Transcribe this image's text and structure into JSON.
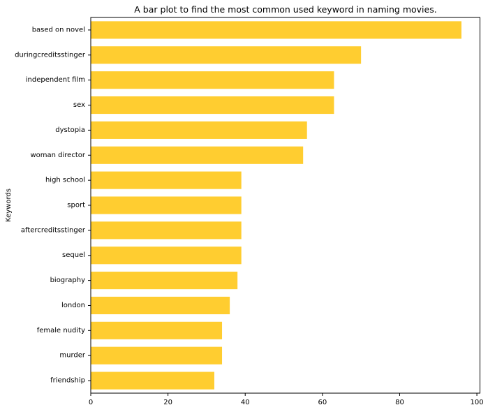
{
  "chart_data": {
    "type": "bar",
    "orientation": "horizontal",
    "title": "A bar plot to find the most common used keyword in naming movies.",
    "xlabel": "",
    "ylabel": "Keywords",
    "categories": [
      "based on novel",
      "duringcreditsstinger",
      "independent film",
      "sex",
      "dystopia",
      "woman director",
      "high school",
      "sport",
      "aftercreditsstinger",
      "sequel",
      "biography",
      "london",
      "female nudity",
      "murder",
      "friendship"
    ],
    "values": [
      96,
      70,
      63,
      63,
      56,
      55,
      39,
      39,
      39,
      39,
      38,
      36,
      34,
      34,
      32
    ],
    "xlim": [
      0,
      100.8
    ],
    "xticks": [
      0,
      20,
      40,
      60,
      80,
      100
    ],
    "grid": false,
    "bar_color": "#ffcd30"
  }
}
